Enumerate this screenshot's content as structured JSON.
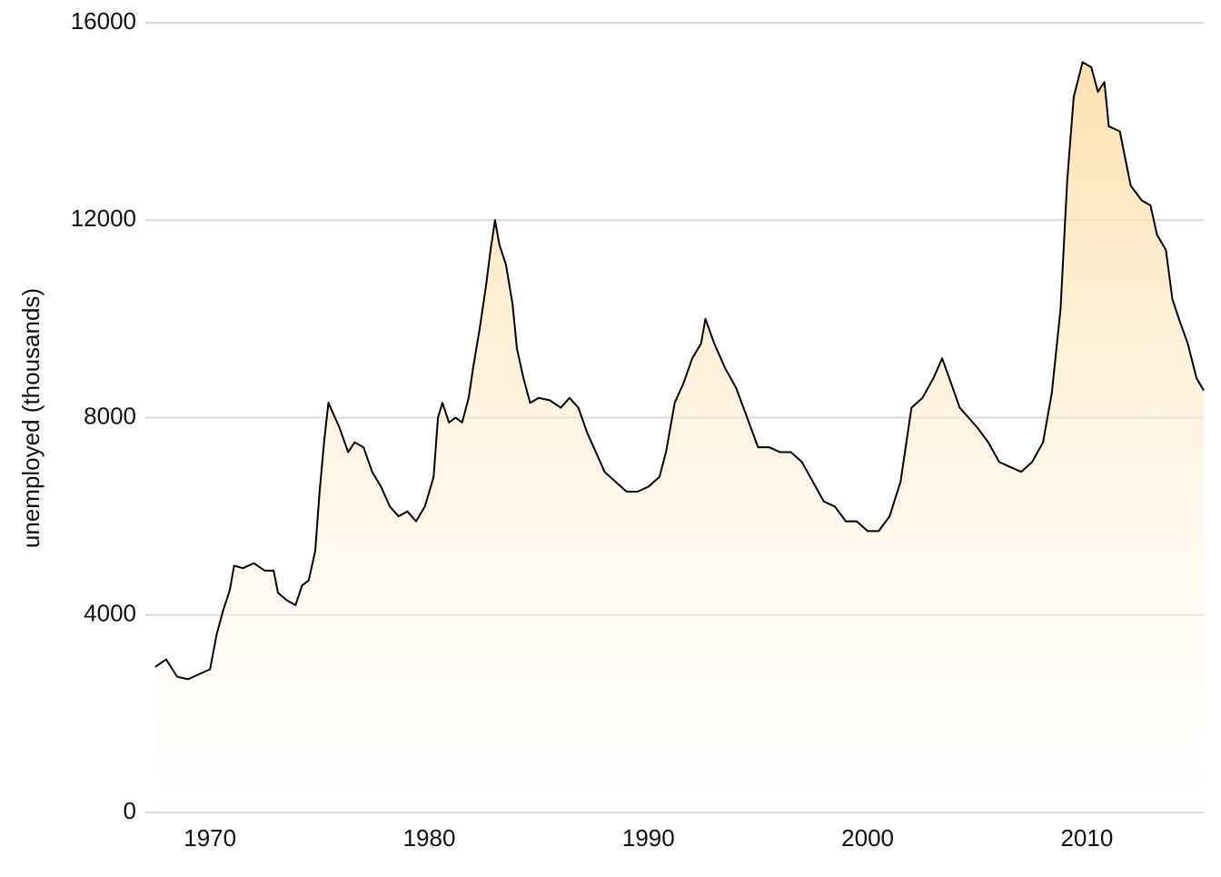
{
  "chart_data": {
    "type": "area",
    "y_label": "unemployed (thousands)",
    "x": [
      1967.5,
      1968.0,
      1968.5,
      1969.0,
      1969.5,
      1970.0,
      1970.3,
      1970.6,
      1970.9,
      1971.1,
      1971.5,
      1972.0,
      1972.5,
      1972.9,
      1973.1,
      1973.5,
      1973.9,
      1974.2,
      1974.5,
      1974.8,
      1975.0,
      1975.2,
      1975.4,
      1975.6,
      1975.9,
      1976.3,
      1976.6,
      1977.0,
      1977.4,
      1977.8,
      1978.2,
      1978.6,
      1979.0,
      1979.4,
      1979.8,
      1980.2,
      1980.4,
      1980.6,
      1980.9,
      1981.2,
      1981.5,
      1981.8,
      1982.0,
      1982.3,
      1982.6,
      1982.8,
      1983.0,
      1983.2,
      1983.5,
      1983.8,
      1984.0,
      1984.3,
      1984.6,
      1985.0,
      1985.5,
      1986.0,
      1986.4,
      1986.8,
      1987.2,
      1987.6,
      1988.0,
      1988.5,
      1989.0,
      1989.5,
      1990.0,
      1990.5,
      1990.8,
      1991.2,
      1991.6,
      1992.0,
      1992.4,
      1992.6,
      1993.0,
      1993.5,
      1994.0,
      1994.5,
      1995.0,
      1995.5,
      1996.0,
      1996.5,
      1997.0,
      1997.5,
      1998.0,
      1998.5,
      1999.0,
      1999.5,
      2000.0,
      2000.5,
      2001.0,
      2001.5,
      2002.0,
      2002.5,
      2003.0,
      2003.4,
      2003.8,
      2004.2,
      2004.6,
      2005.0,
      2005.5,
      2006.0,
      2006.5,
      2007.0,
      2007.5,
      2008.0,
      2008.4,
      2008.8,
      2009.1,
      2009.4,
      2009.8,
      2010.2,
      2010.5,
      2010.8,
      2011.0,
      2011.5,
      2012.0,
      2012.5,
      2012.9,
      2013.2,
      2013.6,
      2013.9,
      2014.2,
      2014.6,
      2015.0,
      2015.33
    ],
    "series": [
      {
        "color": "#000000",
        "fill": "#fddca0",
        "values": [
          2950,
          3100,
          2750,
          2700,
          2800,
          2900,
          3600,
          4100,
          4500,
          5000,
          4950,
          5050,
          4900,
          4900,
          4450,
          4300,
          4200,
          4600,
          4700,
          5300,
          6500,
          7500,
          8300,
          8100,
          7800,
          7300,
          7500,
          7400,
          6900,
          6600,
          6200,
          6000,
          6100,
          5900,
          6200,
          6800,
          8000,
          8300,
          7900,
          8000,
          7900,
          8400,
          9000,
          9800,
          10700,
          11400,
          12000,
          11500,
          11100,
          10300,
          9400,
          8800,
          8300,
          8400,
          8350,
          8200,
          8400,
          8200,
          7700,
          7300,
          6900,
          6700,
          6500,
          6500,
          6600,
          6800,
          7300,
          8300,
          8700,
          9200,
          9500,
          10000,
          9500,
          9000,
          8600,
          8000,
          7400,
          7400,
          7300,
          7300,
          7100,
          6700,
          6300,
          6200,
          5900,
          5900,
          5700,
          5700,
          6000,
          6700,
          8200,
          8400,
          8800,
          9200,
          8700,
          8200,
          8000,
          7800,
          7500,
          7100,
          7000,
          6900,
          7100,
          7500,
          8500,
          10200,
          12800,
          14500,
          15200,
          15100,
          14600,
          14800,
          13900,
          13800,
          12700,
          12400,
          12300,
          11700,
          11400,
          10400,
          10000,
          9500,
          8800,
          8550
        ]
      }
    ],
    "xlim": [
      1967.05,
      2015.33
    ],
    "xticks": [
      1970,
      1980,
      1990,
      2000,
      2010
    ],
    "ylim": [
      0,
      16000
    ],
    "yticks": [
      0,
      4000,
      8000,
      12000,
      16000
    ],
    "grid": true
  }
}
